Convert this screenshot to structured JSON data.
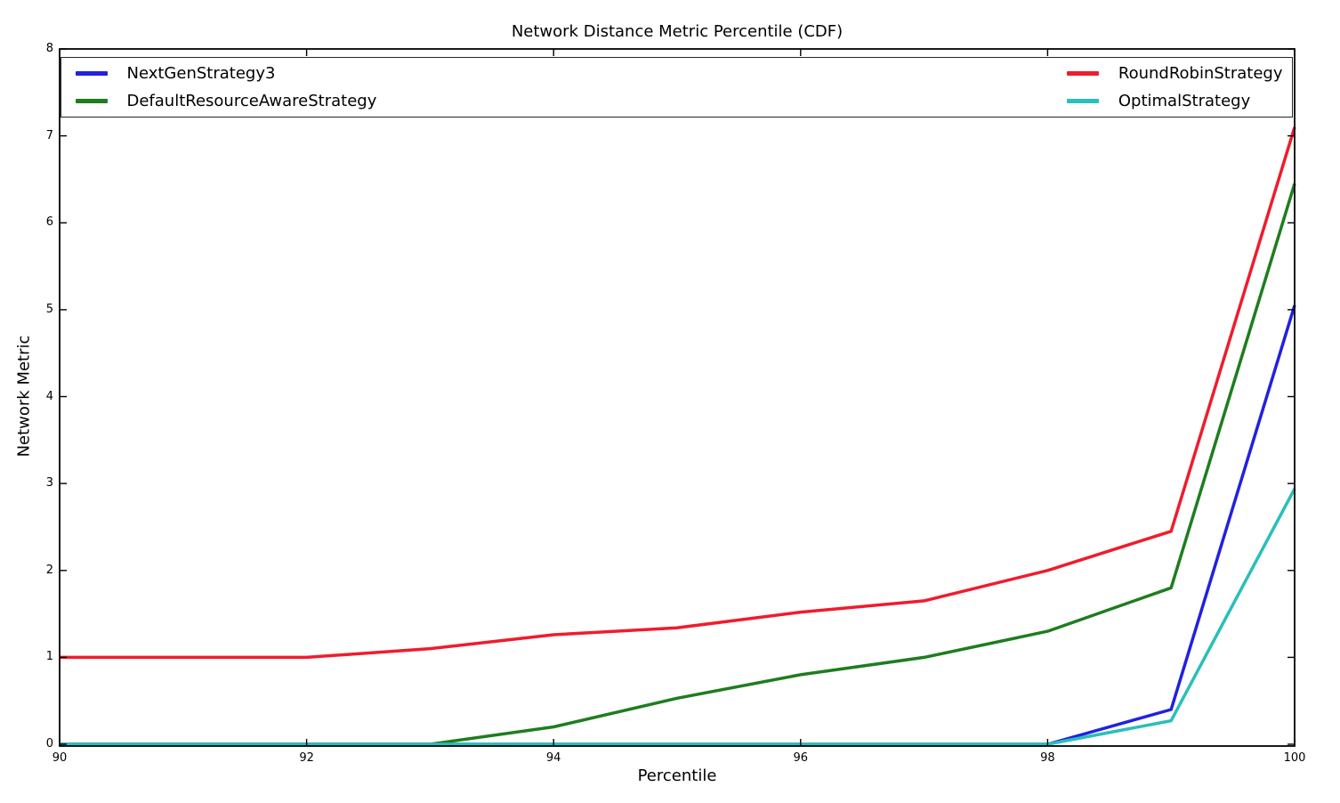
{
  "chart_data": {
    "type": "line",
    "title": "Network Distance Metric Percentile (CDF)",
    "xlabel": "Percentile",
    "ylabel": "Network Metric",
    "xlim": [
      90,
      100
    ],
    "ylim": [
      0,
      8
    ],
    "xticks": [
      90,
      92,
      94,
      96,
      98,
      100
    ],
    "yticks": [
      0,
      1,
      2,
      3,
      4,
      5,
      6,
      7,
      8
    ],
    "grid": false,
    "legend": {
      "position": "top-inside-full-width",
      "columns": 2,
      "border": true
    },
    "x": [
      90,
      91,
      92,
      93,
      94,
      95,
      96,
      97,
      98,
      99,
      100
    ],
    "series": [
      {
        "name": "NextGenStrategy3",
        "color": "#2121e0",
        "legend_column": 0,
        "values": [
          0,
          0,
          0,
          0,
          0,
          0,
          0,
          0,
          0,
          0.4,
          5.05
        ]
      },
      {
        "name": "DefaultResourceAwareStrategy",
        "color": "#1e7d1e",
        "legend_column": 0,
        "values": [
          0,
          0,
          0,
          0,
          0.2,
          0.53,
          0.8,
          1.0,
          1.3,
          1.8,
          6.45
        ]
      },
      {
        "name": "RoundRobinStrategy",
        "color": "#ef1c2d",
        "legend_column": 1,
        "values": [
          1.0,
          1.0,
          1.0,
          1.1,
          1.26,
          1.34,
          1.52,
          1.65,
          2.0,
          2.45,
          7.1
        ]
      },
      {
        "name": "OptimalStrategy",
        "color": "#29bfba",
        "legend_column": 1,
        "values": [
          0,
          0,
          0,
          0,
          0,
          0,
          0,
          0,
          0,
          0.27,
          2.94
        ]
      }
    ],
    "axis_color": "#000000",
    "tick_direction": "in"
  }
}
